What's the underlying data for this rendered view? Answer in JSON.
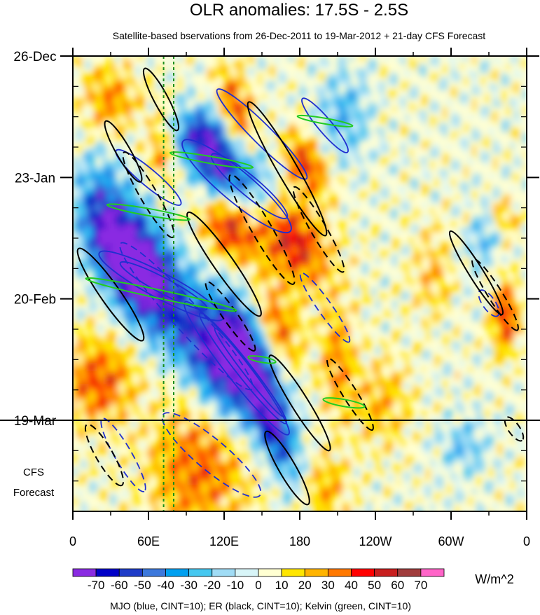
{
  "chart_data": {
    "type": "heatmap",
    "title": "OLR anomalies: 17.5S - 2.5S",
    "subtitle": "Satellite-based bservations from 26-Dec-2011 to 19-Mar-2012 + 21-day CFS Forecast",
    "x_ticks": [
      "0",
      "60E",
      "120E",
      "180",
      "120W",
      "60W",
      "0"
    ],
    "x_tick_lon": [
      0,
      60,
      120,
      180,
      240,
      300,
      360
    ],
    "y_ticks": [
      "26-Dec",
      "23-Jan",
      "20-Feb",
      "19-Mar"
    ],
    "y_tick_day": [
      0,
      28,
      56,
      84
    ],
    "y_range_days": [
      0,
      105
    ],
    "obs_end_day": 84,
    "forecast_label": [
      "CFS",
      "Forecast"
    ],
    "colorbar": {
      "unit": "W/m^2",
      "tick_labels": [
        "-70",
        "-60",
        "-50",
        "-40",
        "-30",
        "-20",
        "-10",
        "0",
        "10",
        "20",
        "30",
        "40",
        "50",
        "60",
        "70"
      ],
      "colors": [
        "#8a2be2",
        "#0000c8",
        "#1e3cc8",
        "#3c78dc",
        "#00a0f0",
        "#46c8f0",
        "#a0dcf5",
        "#d8f5f8",
        "#ffffd2",
        "#ffe600",
        "#ffb400",
        "#ff7800",
        "#ff0000",
        "#c81e1e",
        "#a03c3c",
        "#ff64c8"
      ]
    },
    "vertical_markers_lon": [
      72,
      80
    ],
    "footer": "MJO (blue, CINT=10); ER (black, CINT=10); Kelvin (green, CINT=10)",
    "contour_colors": {
      "mjo": "#1f2fd0",
      "er": "#000000",
      "kelvin": "#22cc22",
      "marker": "#1a8f1a"
    }
  }
}
